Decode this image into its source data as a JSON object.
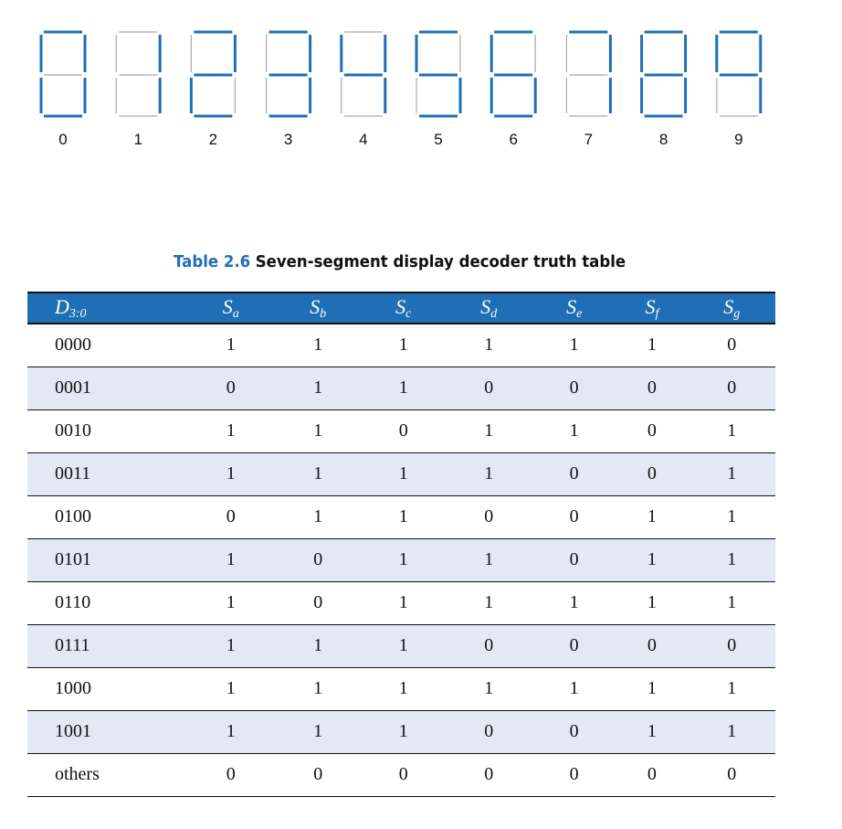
{
  "digits": {
    "labels": [
      "0",
      "1",
      "2",
      "3",
      "4",
      "5",
      "6",
      "7",
      "8",
      "9"
    ],
    "segments_on": [
      [
        1,
        1,
        1,
        1,
        1,
        1,
        0
      ],
      [
        0,
        1,
        1,
        0,
        0,
        0,
        0
      ],
      [
        1,
        1,
        0,
        1,
        1,
        0,
        1
      ],
      [
        1,
        1,
        1,
        1,
        0,
        0,
        1
      ],
      [
        0,
        1,
        1,
        0,
        0,
        1,
        1
      ],
      [
        1,
        0,
        1,
        1,
        0,
        1,
        1
      ],
      [
        1,
        0,
        1,
        1,
        1,
        1,
        1
      ],
      [
        1,
        1,
        1,
        0,
        0,
        0,
        0
      ],
      [
        1,
        1,
        1,
        1,
        1,
        1,
        1
      ],
      [
        1,
        1,
        1,
        0,
        0,
        1,
        1
      ]
    ],
    "on_color": "#1f6fb6",
    "off_color": "#a9a9a9"
  },
  "caption": {
    "number": "Table 2.6",
    "text": "Seven-segment display decoder truth table",
    "number_color": "#1f6fb6"
  },
  "table": {
    "header": [
      {
        "main": "D",
        "sub": "3:0"
      },
      {
        "main": "S",
        "sub": "a"
      },
      {
        "main": "S",
        "sub": "b"
      },
      {
        "main": "S",
        "sub": "c"
      },
      {
        "main": "S",
        "sub": "d"
      },
      {
        "main": "S",
        "sub": "e"
      },
      {
        "main": "S",
        "sub": "f"
      },
      {
        "main": "S",
        "sub": "g"
      }
    ],
    "rows": [
      [
        "0000",
        "1",
        "1",
        "1",
        "1",
        "1",
        "1",
        "0"
      ],
      [
        "0001",
        "0",
        "1",
        "1",
        "0",
        "0",
        "0",
        "0"
      ],
      [
        "0010",
        "1",
        "1",
        "0",
        "1",
        "1",
        "0",
        "1"
      ],
      [
        "0011",
        "1",
        "1",
        "1",
        "1",
        "0",
        "0",
        "1"
      ],
      [
        "0100",
        "0",
        "1",
        "1",
        "0",
        "0",
        "1",
        "1"
      ],
      [
        "0101",
        "1",
        "0",
        "1",
        "1",
        "0",
        "1",
        "1"
      ],
      [
        "0110",
        "1",
        "0",
        "1",
        "1",
        "1",
        "1",
        "1"
      ],
      [
        "0111",
        "1",
        "1",
        "1",
        "0",
        "0",
        "0",
        "0"
      ],
      [
        "1000",
        "1",
        "1",
        "1",
        "1",
        "1",
        "1",
        "1"
      ],
      [
        "1001",
        "1",
        "1",
        "1",
        "0",
        "0",
        "1",
        "1"
      ],
      [
        "others",
        "0",
        "0",
        "0",
        "0",
        "0",
        "0",
        "0"
      ]
    ],
    "header_bg": "#1f6fb6",
    "stripe_bg": "#e3e9f4"
  }
}
